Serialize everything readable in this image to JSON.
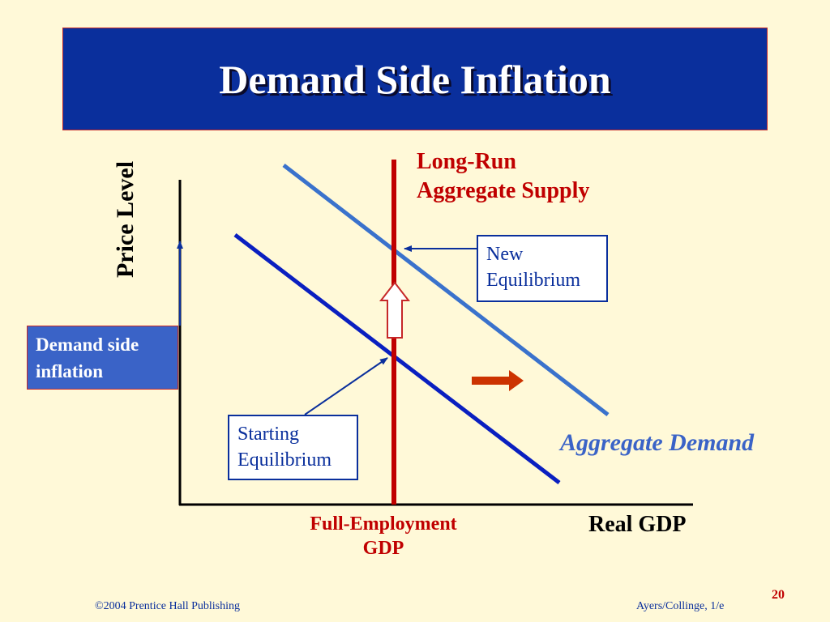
{
  "title": "Demand Side Inflation",
  "labels": {
    "lras_line1": "Long-Run",
    "lras_line2": "Aggregate Supply",
    "y_axis": "Price Level",
    "x_axis": "Real GDP",
    "aggregate_demand": "Aggregate Demand",
    "full_employment_line1": "Full-Employment",
    "full_employment_line2": "GDP",
    "new_equilibrium_line1": "New",
    "new_equilibrium_line2": "Equilibrium",
    "starting_equilibrium_line1": "Starting",
    "starting_equilibrium_line2": "Equilibrium",
    "demand_side_line1": "Demand side",
    "demand_side_line2": "inflation"
  },
  "footer": {
    "copyright": "©2004 Prentice Hall Publishing",
    "edition": "Ayers/Collinge, 1/e",
    "page_number": "20"
  },
  "colors": {
    "background": "#fff9d8",
    "title_bar": "#0a2f9c",
    "lras": "#c00000",
    "ad_original": "#0a1fc0",
    "ad_new": "#3a72cc",
    "shift_arrow": "#cc3300",
    "callout_blue": "#0a2f9c"
  }
}
